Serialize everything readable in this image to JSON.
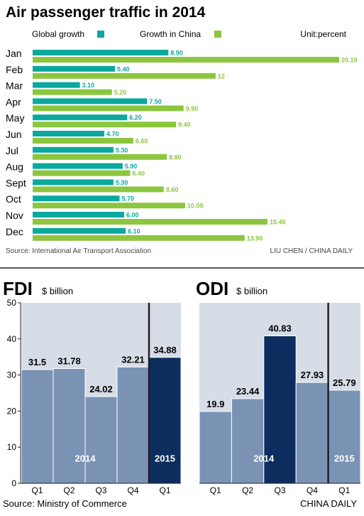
{
  "colors": {
    "global": "#0aa89e",
    "china": "#8cc63f",
    "quarter_bar": "#7a93b5",
    "q1_2015_bar": "#0d2d5e",
    "grid_panel": "#d6dde7",
    "text": "#231f20",
    "source_text": "#444444"
  },
  "air": {
    "title": "Air passenger traffic in 2014",
    "unit_label": "Unit:percent",
    "source": "Source: International Air Transport Association",
    "credit": "LIU CHEN / CHINA DAILY"
  },
  "chart_data": [
    {
      "type": "bar",
      "orientation": "horizontal",
      "title": "Air passenger traffic in 2014",
      "unit": "Unit:percent",
      "legend_position": "top",
      "categories": [
        "Jan",
        "Feb",
        "Mar",
        "Apr",
        "May",
        "Jun",
        "Jul",
        "Aug",
        "Sept",
        "Oct",
        "Nov",
        "Dec"
      ],
      "series": [
        {
          "name": "Global growth",
          "values": [
            8.9,
            5.4,
            3.1,
            7.5,
            6.2,
            4.7,
            5.3,
            5.9,
            5.3,
            5.7,
            6.0,
            6.1
          ],
          "labels": [
            "8.90",
            "5.40",
            "3.10",
            "7.50",
            "6.20",
            "4.70",
            "5.30",
            "5.90",
            "5.30",
            "5.70",
            "6.00",
            "6.10"
          ]
        },
        {
          "name": "Growth in China",
          "values": [
            20.1,
            12,
            5.2,
            9.9,
            9.4,
            6.6,
            8.8,
            6.4,
            8.6,
            10.0,
            15.4,
            13.9
          ],
          "labels": [
            "20.10",
            "12",
            "5.20",
            "9.90",
            "9.40",
            "6.60",
            "8.80",
            "6.40",
            "8.60",
            "10.00",
            "15.40",
            "13.90"
          ]
        }
      ],
      "xlim": [
        0,
        20.1
      ]
    },
    {
      "type": "bar",
      "title": "FDI",
      "unit": "$ billion",
      "categories": [
        "Q1",
        "Q2",
        "Q3",
        "Q4",
        "Q1"
      ],
      "groups": [
        {
          "label": "2014",
          "categories": [
            "Q1",
            "Q2",
            "Q3",
            "Q4"
          ]
        },
        {
          "label": "2015",
          "categories": [
            "Q1"
          ]
        }
      ],
      "values": [
        31.5,
        31.78,
        24.02,
        32.21,
        34.88
      ],
      "labels": [
        "31.5",
        "31.78",
        "24.02",
        "32.21",
        "34.88"
      ],
      "ylim": [
        0,
        50
      ],
      "yticks": [
        0,
        10,
        20,
        30,
        40,
        50
      ],
      "grid": false
    },
    {
      "type": "bar",
      "title": "ODI",
      "unit": "$ billion",
      "categories": [
        "Q1",
        "Q2",
        "Q3",
        "Q4",
        "Q1"
      ],
      "groups": [
        {
          "label": "2014",
          "categories": [
            "Q1",
            "Q2",
            "Q3",
            "Q4"
          ]
        },
        {
          "label": "2015",
          "categories": [
            "Q1"
          ]
        }
      ],
      "values": [
        19.9,
        23.44,
        40.83,
        27.93,
        25.79
      ],
      "labels": [
        "19.9",
        "23.44",
        "40.83",
        "27.93",
        "25.79"
      ],
      "highlight_index": 2,
      "ylim": [
        0,
        50
      ],
      "grid": false
    }
  ],
  "bottom": {
    "source": "Source: Ministry of Commerce",
    "credit": "CHINA DAILY"
  }
}
